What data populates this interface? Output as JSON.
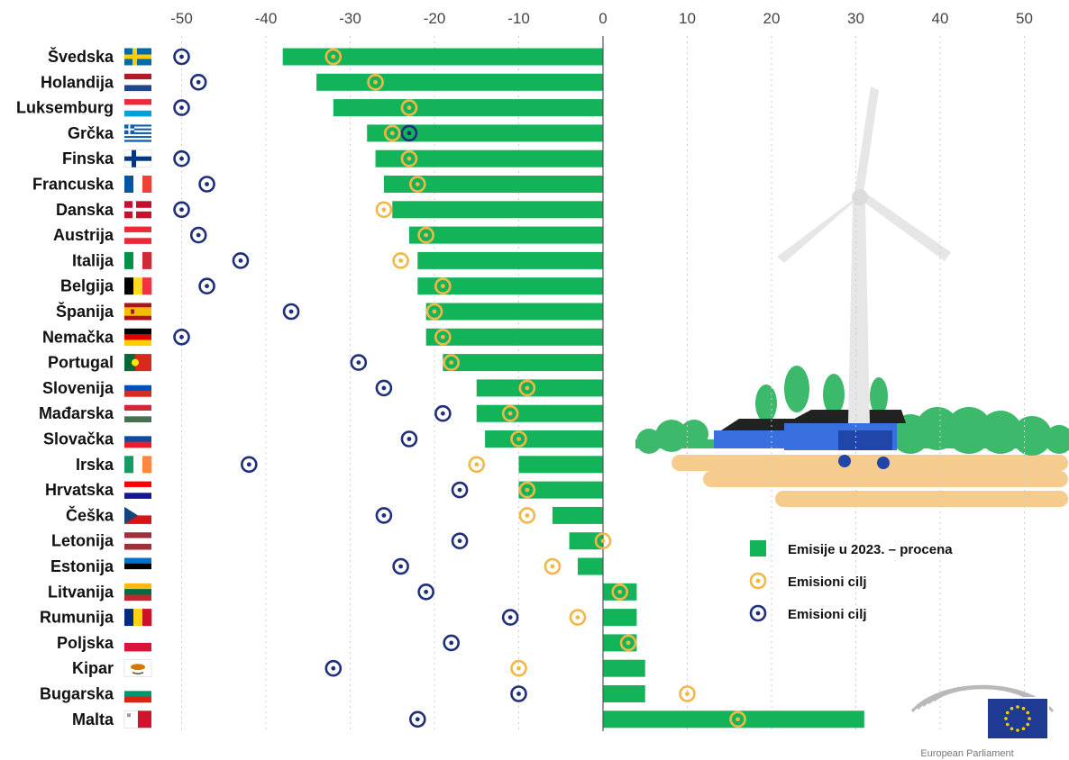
{
  "chart_data": {
    "type": "bar",
    "orientation": "horizontal",
    "categories": [
      "Švedska",
      "Holandija",
      "Luksemburg",
      "Grčka",
      "Finska",
      "Francuska",
      "Danska",
      "Austrija",
      "Italija",
      "Belgija",
      "Španija",
      "Nemačka",
      "Portugal",
      "Slovenija",
      "Mađarska",
      "Slovačka",
      "Irska",
      "Hrvatska",
      "Češka",
      "Letonija",
      "Estonija",
      "Litvanija",
      "Rumunija",
      "Poljska",
      "Kipar",
      "Bugarska",
      "Malta"
    ],
    "xlim": [
      -55,
      55
    ],
    "xticks": [
      -50,
      -40,
      -30,
      -20,
      -10,
      0,
      10,
      20,
      30,
      40,
      50
    ],
    "grid": "vertical dotted",
    "legend_position": "bottom-right",
    "series": [
      {
        "name": "Emisije u 2023. – procena",
        "marker": "bar",
        "color": "#12b359",
        "values": [
          -38,
          -34,
          -32,
          -28,
          -27,
          -26,
          -25,
          -23,
          -22,
          -22,
          -21,
          -21,
          -19,
          -15,
          -15,
          -14,
          -10,
          -10,
          -6,
          -4,
          -3,
          4,
          4,
          4,
          5,
          5,
          31
        ]
      },
      {
        "name": "Emisioni cilj",
        "marker": "ring",
        "color": "#f2b744",
        "values": [
          -32,
          -27,
          -23,
          -25,
          -23,
          -22,
          -26,
          -21,
          -24,
          -19,
          -20,
          -19,
          -18,
          -9,
          -11,
          -10,
          -15,
          -9,
          -9,
          0,
          -6,
          2,
          -3,
          3,
          -10,
          10,
          16
        ]
      },
      {
        "name": "Emisioni cilj",
        "marker": "ring",
        "color": "#1f2f7a",
        "values": [
          -50,
          -48,
          -50,
          -23,
          -50,
          -47,
          -50,
          -48,
          -43,
          -47,
          -37,
          -50,
          -29,
          -26,
          -19,
          -23,
          -42,
          -17,
          -26,
          -17,
          -24,
          -21,
          -11,
          -18,
          -32,
          -10,
          -22
        ]
      }
    ]
  },
  "branding": {
    "logo_name": "European Parliament",
    "logo_text": "European Parliament"
  },
  "colors": {
    "bar": "#12b359",
    "target_2030": "#f2b744",
    "target_old": "#1f2f7a",
    "grid": "#cfcfcf"
  },
  "icons": [
    "flag-icon",
    "wind-turbine-icon",
    "farm-illustration-icon",
    "european-parliament-logo-icon"
  ]
}
